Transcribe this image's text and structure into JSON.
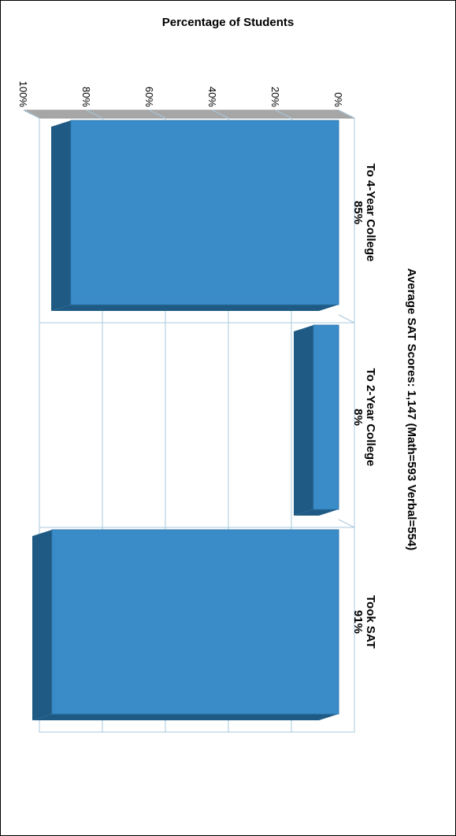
{
  "chart_data": {
    "type": "bar",
    "title": "Percentage of Students",
    "footnote": "Average SAT Scores: 1,147 (Math=593 Verbal=554)",
    "categories": [
      "To 4-Year College",
      "To 2-Year College",
      "Took SAT"
    ],
    "value_labels": [
      "85%",
      "8%",
      "91%"
    ],
    "values": [
      85,
      8,
      91
    ],
    "ylim": [
      0,
      100
    ],
    "yticks": [
      0,
      20,
      40,
      60,
      80,
      100
    ],
    "ytick_labels": [
      "0%",
      "20%",
      "40%",
      "60%",
      "80%",
      "100%"
    ],
    "grid": true,
    "orientation": "rotated-90-clockwise",
    "colors": {
      "bar_front": "#3a8cc8",
      "bar_side": "#1e5a84",
      "floor": "#a6a6a6",
      "grid": "#a8c8dc"
    }
  }
}
